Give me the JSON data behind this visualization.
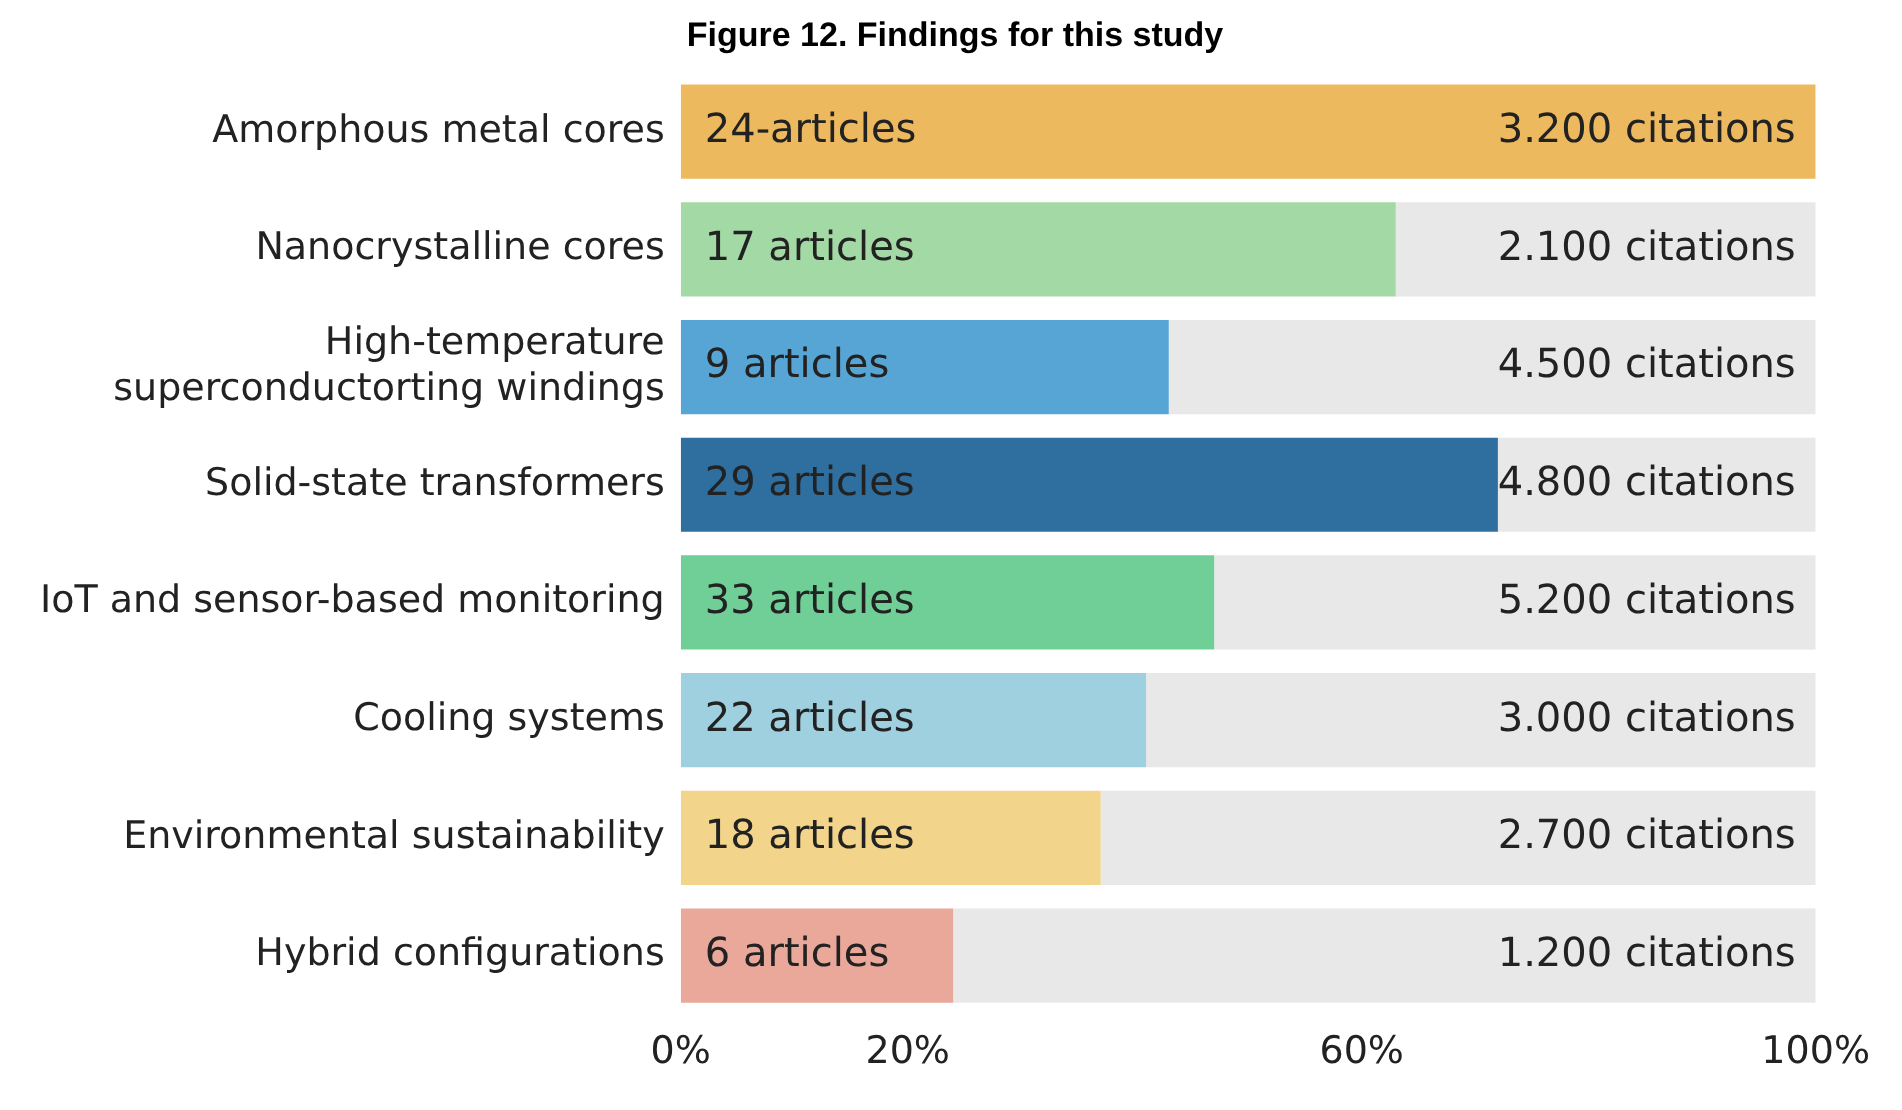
{
  "chart_data": {
    "type": "bar",
    "orientation": "horizontal",
    "stacked": true,
    "title": "Figure 12. Findings for this study",
    "categories": [
      "Amorphous metal cores",
      "Nanocrystalline cores",
      "High-temperature superconductorting windings",
      "Solid-state transformers",
      "IoT and sensor-based monitoring",
      "Cooling systems",
      "Environmental sustainability",
      "Hybrid configurations"
    ],
    "series": [
      {
        "colors": [
          "#edb95e",
          "#a3d9a5",
          "#56a5d5",
          "#2f6f9f",
          "#6fcf97",
          "#9fd0df",
          "#f2d48a",
          "#eaa89a"
        ],
        "values": [
          100,
          63,
          43,
          72,
          47,
          41,
          37,
          24
        ]
      },
      {
        "color": "#e8e8e8",
        "values": [
          0,
          37,
          57,
          28,
          53,
          59,
          63,
          76
        ]
      }
    ],
    "annotations": [
      {
        "text": "24-articles",
        "y": "Amorphous metal cores"
      },
      {
        "text": "17 articles",
        "y": "Nanocrystalline cores"
      },
      {
        "text": "9 articles",
        "y": "High-temperature superconductorting windings"
      },
      {
        "text": "29 articles",
        "y": "Solid-state transformers"
      },
      {
        "text": "33 articles",
        "y": "IoT and sensor-based monitoring"
      },
      {
        "text": "22 articles",
        "y": "Cooling systems"
      },
      {
        "text": "18 articles",
        "y": "Environmental sustainability"
      },
      {
        "text": "6 articles",
        "y": "Hybrid configurations"
      },
      {
        "text": "3.200 citations",
        "y": "Amorphous metal cores"
      },
      {
        "text": "2.100 citations",
        "y": "Nanocrystalline cores"
      },
      {
        "text": "4.500 citations",
        "y": "High-temperature superconductorting windings"
      },
      {
        "text": "4.800 citations",
        "y": "Solid-state transformers"
      },
      {
        "text": "5.200 citations",
        "y": "IoT and sensor-based monitoring"
      },
      {
        "text": "3.000 citations",
        "y": "Cooling systems"
      },
      {
        "text": "2.700 citations",
        "y": "Environmental sustainability"
      },
      {
        "text": "1.200 citations",
        "y": "Hybrid configurations"
      }
    ],
    "xlim": [
      0,
      100
    ],
    "xticks": [
      {
        "value": 0,
        "label": "0%"
      },
      {
        "value": 20,
        "label": "20%"
      },
      {
        "value": 60,
        "label": "60%"
      },
      {
        "value": 100,
        "label": "100%"
      }
    ],
    "grid": false,
    "legend": false
  }
}
